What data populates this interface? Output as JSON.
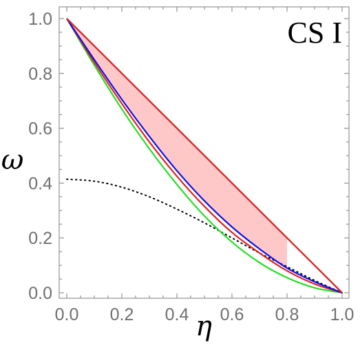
{
  "chart_data": {
    "type": "line",
    "panel_label": "CS I",
    "xlabel": "η",
    "ylabel": "ω",
    "xlim": [
      0,
      1
    ],
    "ylim": [
      0,
      1
    ],
    "x_ticks": [
      "0.0",
      "0.2",
      "0.4",
      "0.6",
      "0.8",
      "1.0"
    ],
    "y_ticks": [
      "0.0",
      "0.2",
      "0.4",
      "0.6",
      "0.8",
      "1.0"
    ],
    "grid": false,
    "colors": {
      "upper_line": "#d42a2a",
      "blue": "#1010e8",
      "red": "#e02020",
      "green": "#22dd22",
      "dotted": "#000000",
      "shaded": "#ffc8c8"
    },
    "shaded_region": {
      "description_series": [
        "upper_line",
        "blue"
      ],
      "x_range": [
        0,
        0.8
      ],
      "lower_end_value": 0.12
    },
    "series": [
      {
        "key": "upper_line",
        "style": "solid",
        "x": [
          0,
          1
        ],
        "y": [
          1,
          0
        ]
      },
      {
        "key": "blue",
        "style": "solid",
        "x": [
          0,
          0.1,
          0.2,
          0.3,
          0.4,
          0.5,
          0.6,
          0.7,
          0.8,
          0.9,
          1.0
        ],
        "y": [
          1.0,
          0.85,
          0.705,
          0.57,
          0.445,
          0.335,
          0.24,
          0.16,
          0.09,
          0.04,
          0.0
        ]
      },
      {
        "key": "red",
        "style": "solid",
        "x": [
          0,
          0.1,
          0.2,
          0.3,
          0.4,
          0.5,
          0.6,
          0.7,
          0.8,
          0.9,
          1.0
        ],
        "y": [
          1.0,
          0.84,
          0.69,
          0.55,
          0.425,
          0.315,
          0.22,
          0.145,
          0.08,
          0.032,
          0.0
        ]
      },
      {
        "key": "green",
        "style": "solid",
        "x": [
          0,
          0.1,
          0.2,
          0.3,
          0.4,
          0.5,
          0.6,
          0.7,
          0.8,
          0.9,
          1.0
        ],
        "y": [
          1.0,
          0.83,
          0.67,
          0.525,
          0.395,
          0.28,
          0.185,
          0.11,
          0.055,
          0.018,
          0.0
        ]
      },
      {
        "key": "dotted",
        "style": "dotted",
        "x": [
          0,
          0.1,
          0.2,
          0.3,
          0.4,
          0.5,
          0.6,
          0.7,
          0.8,
          0.9,
          1.0
        ],
        "y": [
          0.414,
          0.407,
          0.385,
          0.35,
          0.305,
          0.255,
          0.2,
          0.145,
          0.095,
          0.045,
          0.0
        ]
      }
    ]
  }
}
